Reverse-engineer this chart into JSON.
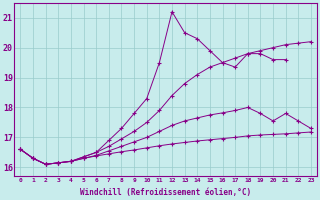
{
  "xlabel": "Windchill (Refroidissement éolien,°C)",
  "background_color": "#c8ecec",
  "line_color": "#880088",
  "grid_color": "#99cccc",
  "xticks": [
    0,
    1,
    2,
    3,
    4,
    5,
    6,
    7,
    8,
    9,
    10,
    11,
    12,
    13,
    14,
    15,
    16,
    17,
    18,
    19,
    20,
    21,
    22,
    23
  ],
  "yticks": [
    16,
    17,
    18,
    19,
    20,
    21
  ],
  "ylim": [
    15.7,
    21.5
  ],
  "xlim": [
    -0.5,
    23.5
  ],
  "series": [
    {
      "x": [
        0,
        1,
        2,
        3,
        4,
        5,
        6,
        7,
        8,
        9,
        10,
        11,
        12,
        13,
        14,
        15,
        16,
        17,
        18,
        19,
        20,
        21
      ],
      "y": [
        16.6,
        16.3,
        16.1,
        16.15,
        16.2,
        16.35,
        16.5,
        16.9,
        17.3,
        17.8,
        18.3,
        19.5,
        21.2,
        20.5,
        20.3,
        19.9,
        19.5,
        19.35,
        19.8,
        19.8,
        19.6,
        19.6
      ]
    },
    {
      "x": [
        0,
        1,
        2,
        3,
        4,
        5,
        6,
        7,
        8,
        9,
        10,
        11,
        12,
        13,
        14,
        15,
        16,
        17,
        18,
        19,
        20,
        21,
        22,
        23
      ],
      "y": [
        16.6,
        16.3,
        16.1,
        16.15,
        16.2,
        16.35,
        16.5,
        16.7,
        16.95,
        17.2,
        17.5,
        17.9,
        18.4,
        18.8,
        19.1,
        19.35,
        19.5,
        19.65,
        19.8,
        19.9,
        20.0,
        20.1,
        20.15,
        20.2
      ]
    },
    {
      "x": [
        0,
        1,
        2,
        3,
        4,
        5,
        6,
        7,
        8,
        9,
        10,
        11,
        12,
        13,
        14,
        15,
        16,
        17,
        18,
        19,
        20,
        21,
        22,
        23
      ],
      "y": [
        16.6,
        16.3,
        16.1,
        16.15,
        16.2,
        16.3,
        16.4,
        16.55,
        16.7,
        16.85,
        17.0,
        17.2,
        17.4,
        17.55,
        17.65,
        17.75,
        17.82,
        17.9,
        18.0,
        17.8,
        17.55,
        17.8,
        17.55,
        17.3
      ]
    },
    {
      "x": [
        0,
        1,
        2,
        3,
        4,
        5,
        6,
        7,
        8,
        9,
        10,
        11,
        12,
        13,
        14,
        15,
        16,
        17,
        18,
        19,
        20,
        21,
        22,
        23
      ],
      "y": [
        16.6,
        16.3,
        16.1,
        16.15,
        16.2,
        16.3,
        16.38,
        16.45,
        16.52,
        16.58,
        16.65,
        16.72,
        16.78,
        16.83,
        16.88,
        16.92,
        16.96,
        17.0,
        17.05,
        17.08,
        17.1,
        17.12,
        17.15,
        17.18
      ]
    }
  ]
}
